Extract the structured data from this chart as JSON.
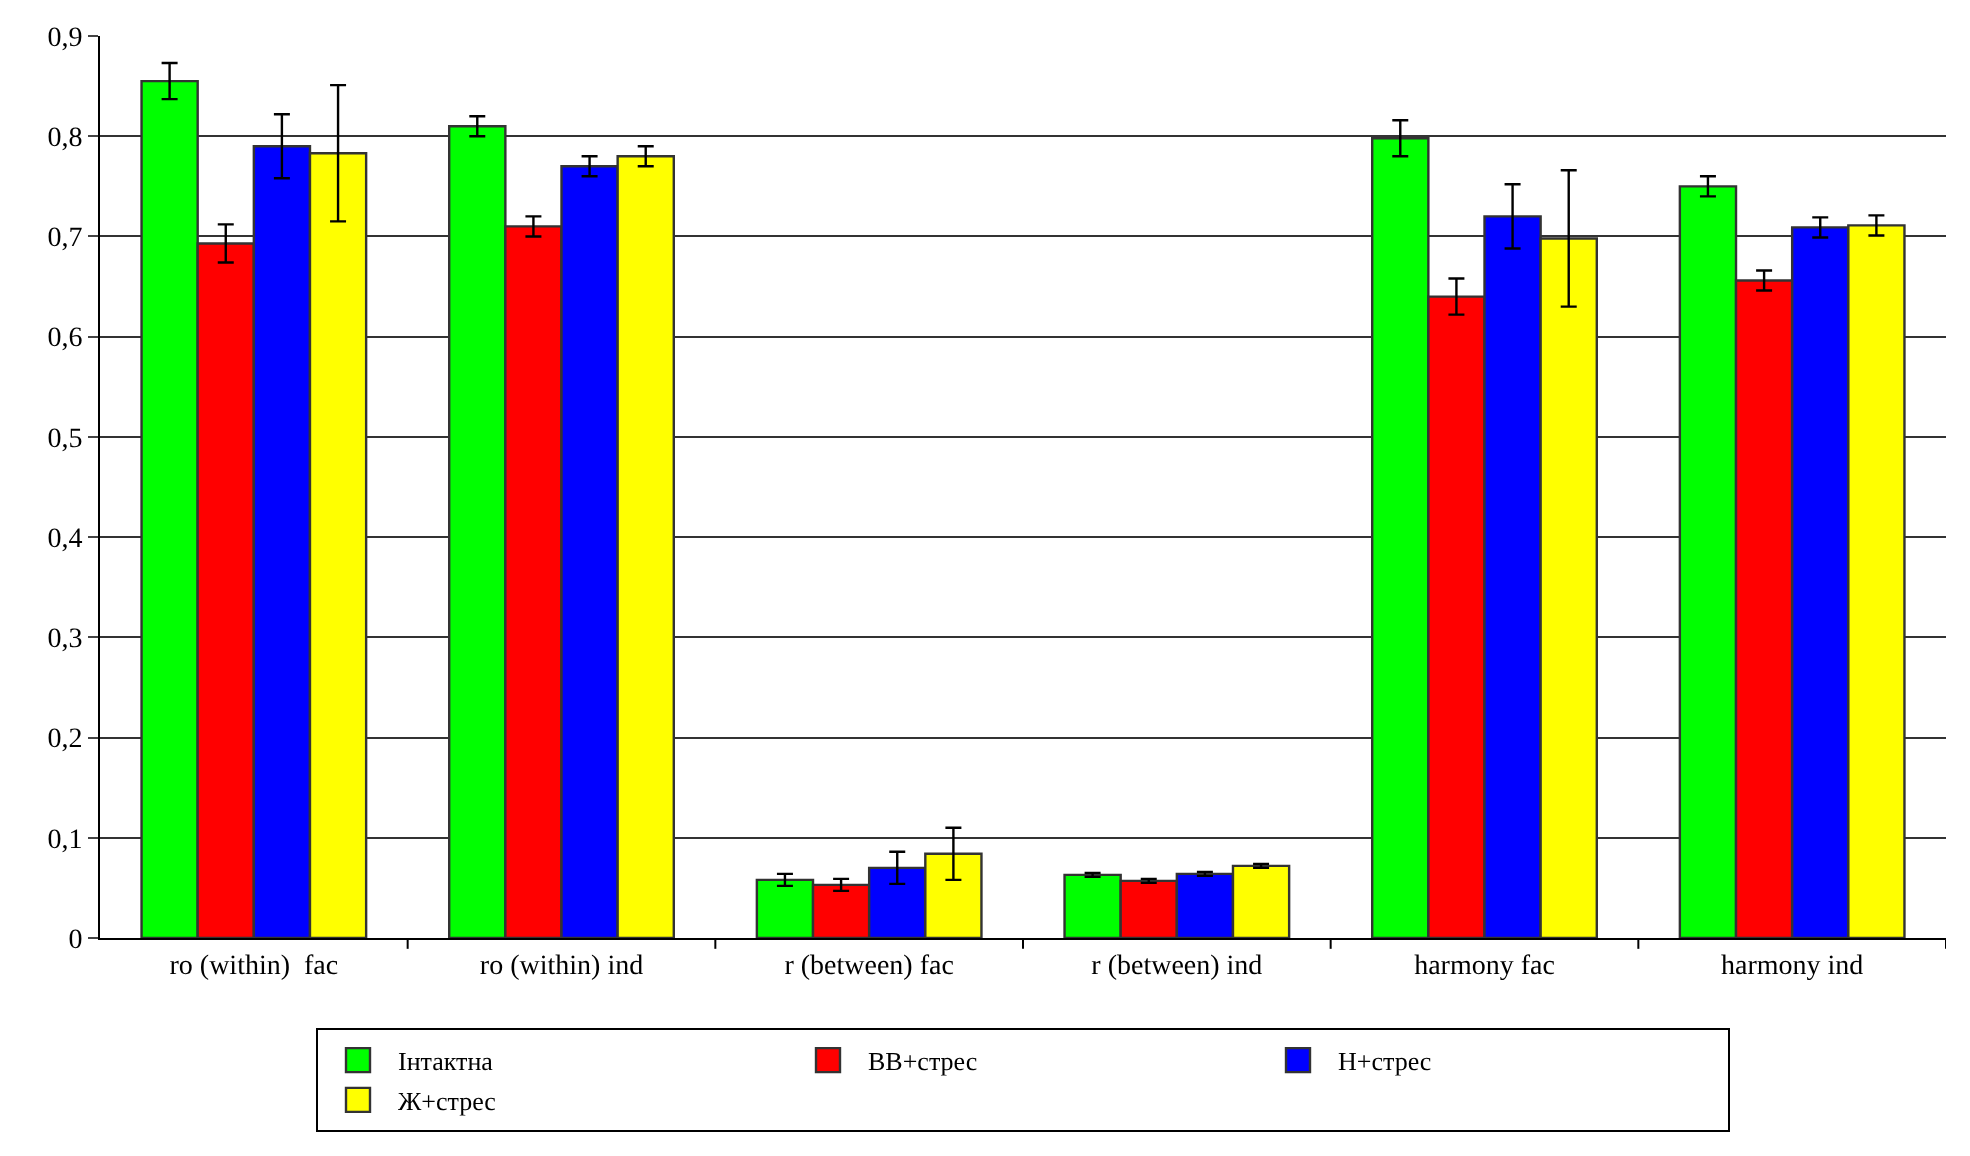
{
  "chart_data": {
    "type": "bar",
    "categories": [
      "ro (within)  fac",
      "ro (within) ind",
      "r (between) fac",
      "r (between) ind",
      "harmony fac",
      "harmony ind"
    ],
    "series": [
      {
        "name": "Інтактна",
        "color": "#00ff00",
        "values": [
          0.855,
          0.81,
          0.058,
          0.063,
          0.798,
          0.75
        ],
        "errors": [
          0.018,
          0.01,
          0.006,
          0.002,
          0.018,
          0.01
        ]
      },
      {
        "name": "ВВ+стрес",
        "color": "#ff0000",
        "values": [
          0.693,
          0.71,
          0.053,
          0.057,
          0.64,
          0.656
        ],
        "errors": [
          0.019,
          0.01,
          0.006,
          0.002,
          0.018,
          0.01
        ]
      },
      {
        "name": "Н+стрес",
        "color": "#0000ff",
        "values": [
          0.79,
          0.77,
          0.07,
          0.064,
          0.72,
          0.709
        ],
        "errors": [
          0.032,
          0.01,
          0.016,
          0.002,
          0.032,
          0.01
        ]
      },
      {
        "name": "Ж+стрес",
        "color": "#ffff00",
        "values": [
          0.783,
          0.78,
          0.084,
          0.072,
          0.698,
          0.711
        ],
        "errors": [
          0.068,
          0.01,
          0.026,
          0.002,
          0.068,
          0.01
        ]
      }
    ],
    "ylim": [
      0,
      0.9
    ],
    "yticks": [
      0,
      {
        "value": 0.1,
        "label": "0,1"
      },
      {
        "value": 0.2,
        "label": "0,2"
      },
      {
        "value": 0.3,
        "label": "0,3"
      },
      {
        "value": 0.4,
        "label": "0,4"
      },
      {
        "value": 0.5,
        "label": "0,5"
      },
      {
        "value": 0.6,
        "label": "0,6"
      },
      {
        "value": 0.7,
        "label": "0,7"
      },
      {
        "value": 0.8,
        "label": "0,8"
      },
      {
        "value": 0.9,
        "label": "0,9"
      }
    ],
    "grid": "y",
    "legend": "bottom"
  }
}
